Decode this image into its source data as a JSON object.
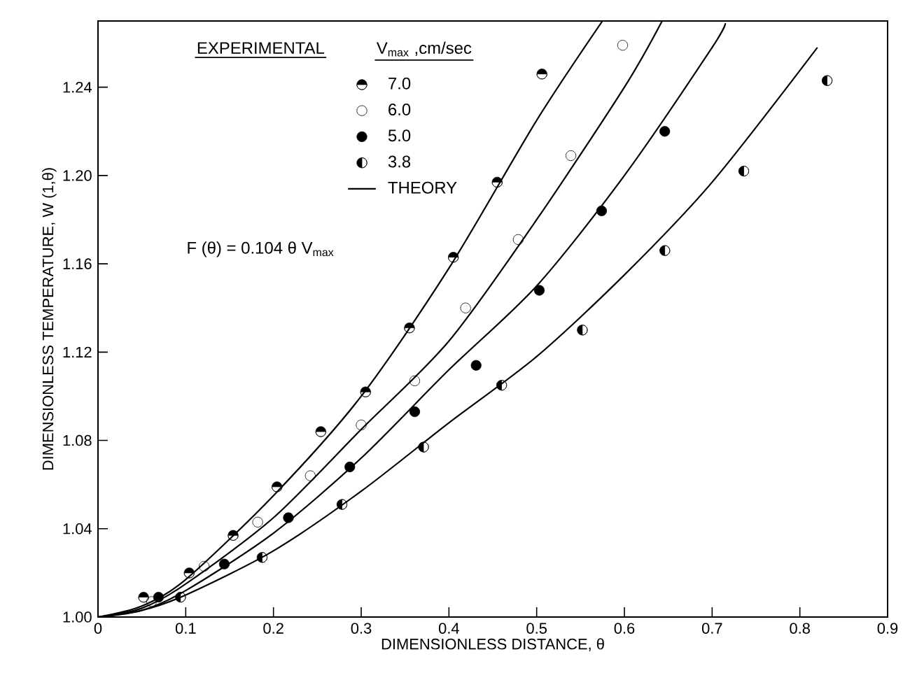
{
  "chart_data": {
    "type": "scatter",
    "xlabel": "DIMENSIONLESS DISTANCE, θ",
    "ylabel": "DIMENSIONLESS TEMPERATURE, W (1,θ)",
    "legend_title": "EXPERIMENTAL",
    "annotations": [
      "V$_{max}$ ,cm/sec",
      "F (θ) = 0.104 θ V$_{max}$"
    ],
    "xlim": [
      0,
      0.9
    ],
    "ylim": [
      1.0,
      1.27
    ],
    "xticks": [
      0,
      0.1,
      0.2,
      0.3,
      0.4,
      0.5,
      0.6,
      0.7,
      0.8,
      0.9
    ],
    "yticks": [
      {
        "value": 1.0,
        "label": "1.00"
      },
      1.04,
      1.08,
      1.12,
      1.16,
      {
        "value": 1.2,
        "label": "1.20"
      },
      1.24
    ],
    "legend": "top left",
    "marker": "circle",
    "grid": false,
    "series": [
      {
        "name": "7.0",
        "color": "#000000",
        "x": [
          0.052,
          0.104,
          0.154,
          0.204,
          0.254,
          0.305,
          0.355,
          0.405,
          0.455,
          0.506
        ],
        "values": [
          1.009,
          1.02,
          1.037,
          1.059,
          1.084,
          1.102,
          1.131,
          1.163,
          1.197,
          1.246
        ]
      },
      {
        "name": "6.0",
        "color": "#000000",
        "x": [
          0.061,
          0.121,
          0.182,
          0.242,
          0.3,
          0.361,
          0.419,
          0.479,
          0.539,
          0.598
        ],
        "values": [
          1.007,
          1.023,
          1.043,
          1.064,
          1.087,
          1.107,
          1.14,
          1.171,
          1.209,
          1.259
        ]
      },
      {
        "name": "5.0",
        "color": "#000000",
        "x": [
          0.069,
          0.144,
          0.217,
          0.287,
          0.361,
          0.431,
          0.503,
          0.574,
          0.646
        ],
        "values": [
          1.009,
          1.024,
          1.045,
          1.068,
          1.093,
          1.114,
          1.148,
          1.184,
          1.22
        ]
      },
      {
        "name": "3.8",
        "color": "#000000",
        "x": [
          0.094,
          0.187,
          0.278,
          0.371,
          0.46,
          0.552,
          0.646,
          0.736,
          0.831
        ],
        "values": [
          1.009,
          1.027,
          1.051,
          1.077,
          1.105,
          1.13,
          1.166,
          1.202,
          1.243
        ]
      },
      {
        "name": "THEORY",
        "type": "line",
        "marker": "none",
        "color": "#000000",
        "x": [
          0,
          0.05,
          0.1,
          0.2,
          0.3,
          0.4,
          0.5,
          0.575
        ],
        "values": [
          1.0,
          1.005,
          1.017,
          1.055,
          1.1,
          1.158,
          1.225,
          1.27
        ]
      },
      {
        "type": "line",
        "marker": "none",
        "color": "#000000",
        "x": [
          0,
          0.05,
          0.1,
          0.2,
          0.3,
          0.4,
          0.5,
          0.6,
          0.643
        ],
        "values": [
          1.0,
          1.004,
          1.015,
          1.045,
          1.085,
          1.125,
          1.18,
          1.24,
          1.27
        ]
      },
      {
        "type": "line",
        "marker": "none",
        "color": "#000000",
        "x": [
          0,
          0.05,
          0.1,
          0.2,
          0.3,
          0.4,
          0.5,
          0.6,
          0.7,
          0.715
        ],
        "values": [
          1.0,
          1.003,
          1.012,
          1.038,
          1.072,
          1.112,
          1.15,
          1.2,
          1.258,
          1.269
        ]
      },
      {
        "type": "line",
        "marker": "none",
        "color": "#000000",
        "x": [
          0,
          0.05,
          0.1,
          0.2,
          0.3,
          0.4,
          0.5,
          0.6,
          0.7,
          0.82
        ],
        "values": [
          1.0,
          1.003,
          1.01,
          1.03,
          1.057,
          1.088,
          1.118,
          1.155,
          1.197,
          1.258
        ]
      }
    ]
  }
}
